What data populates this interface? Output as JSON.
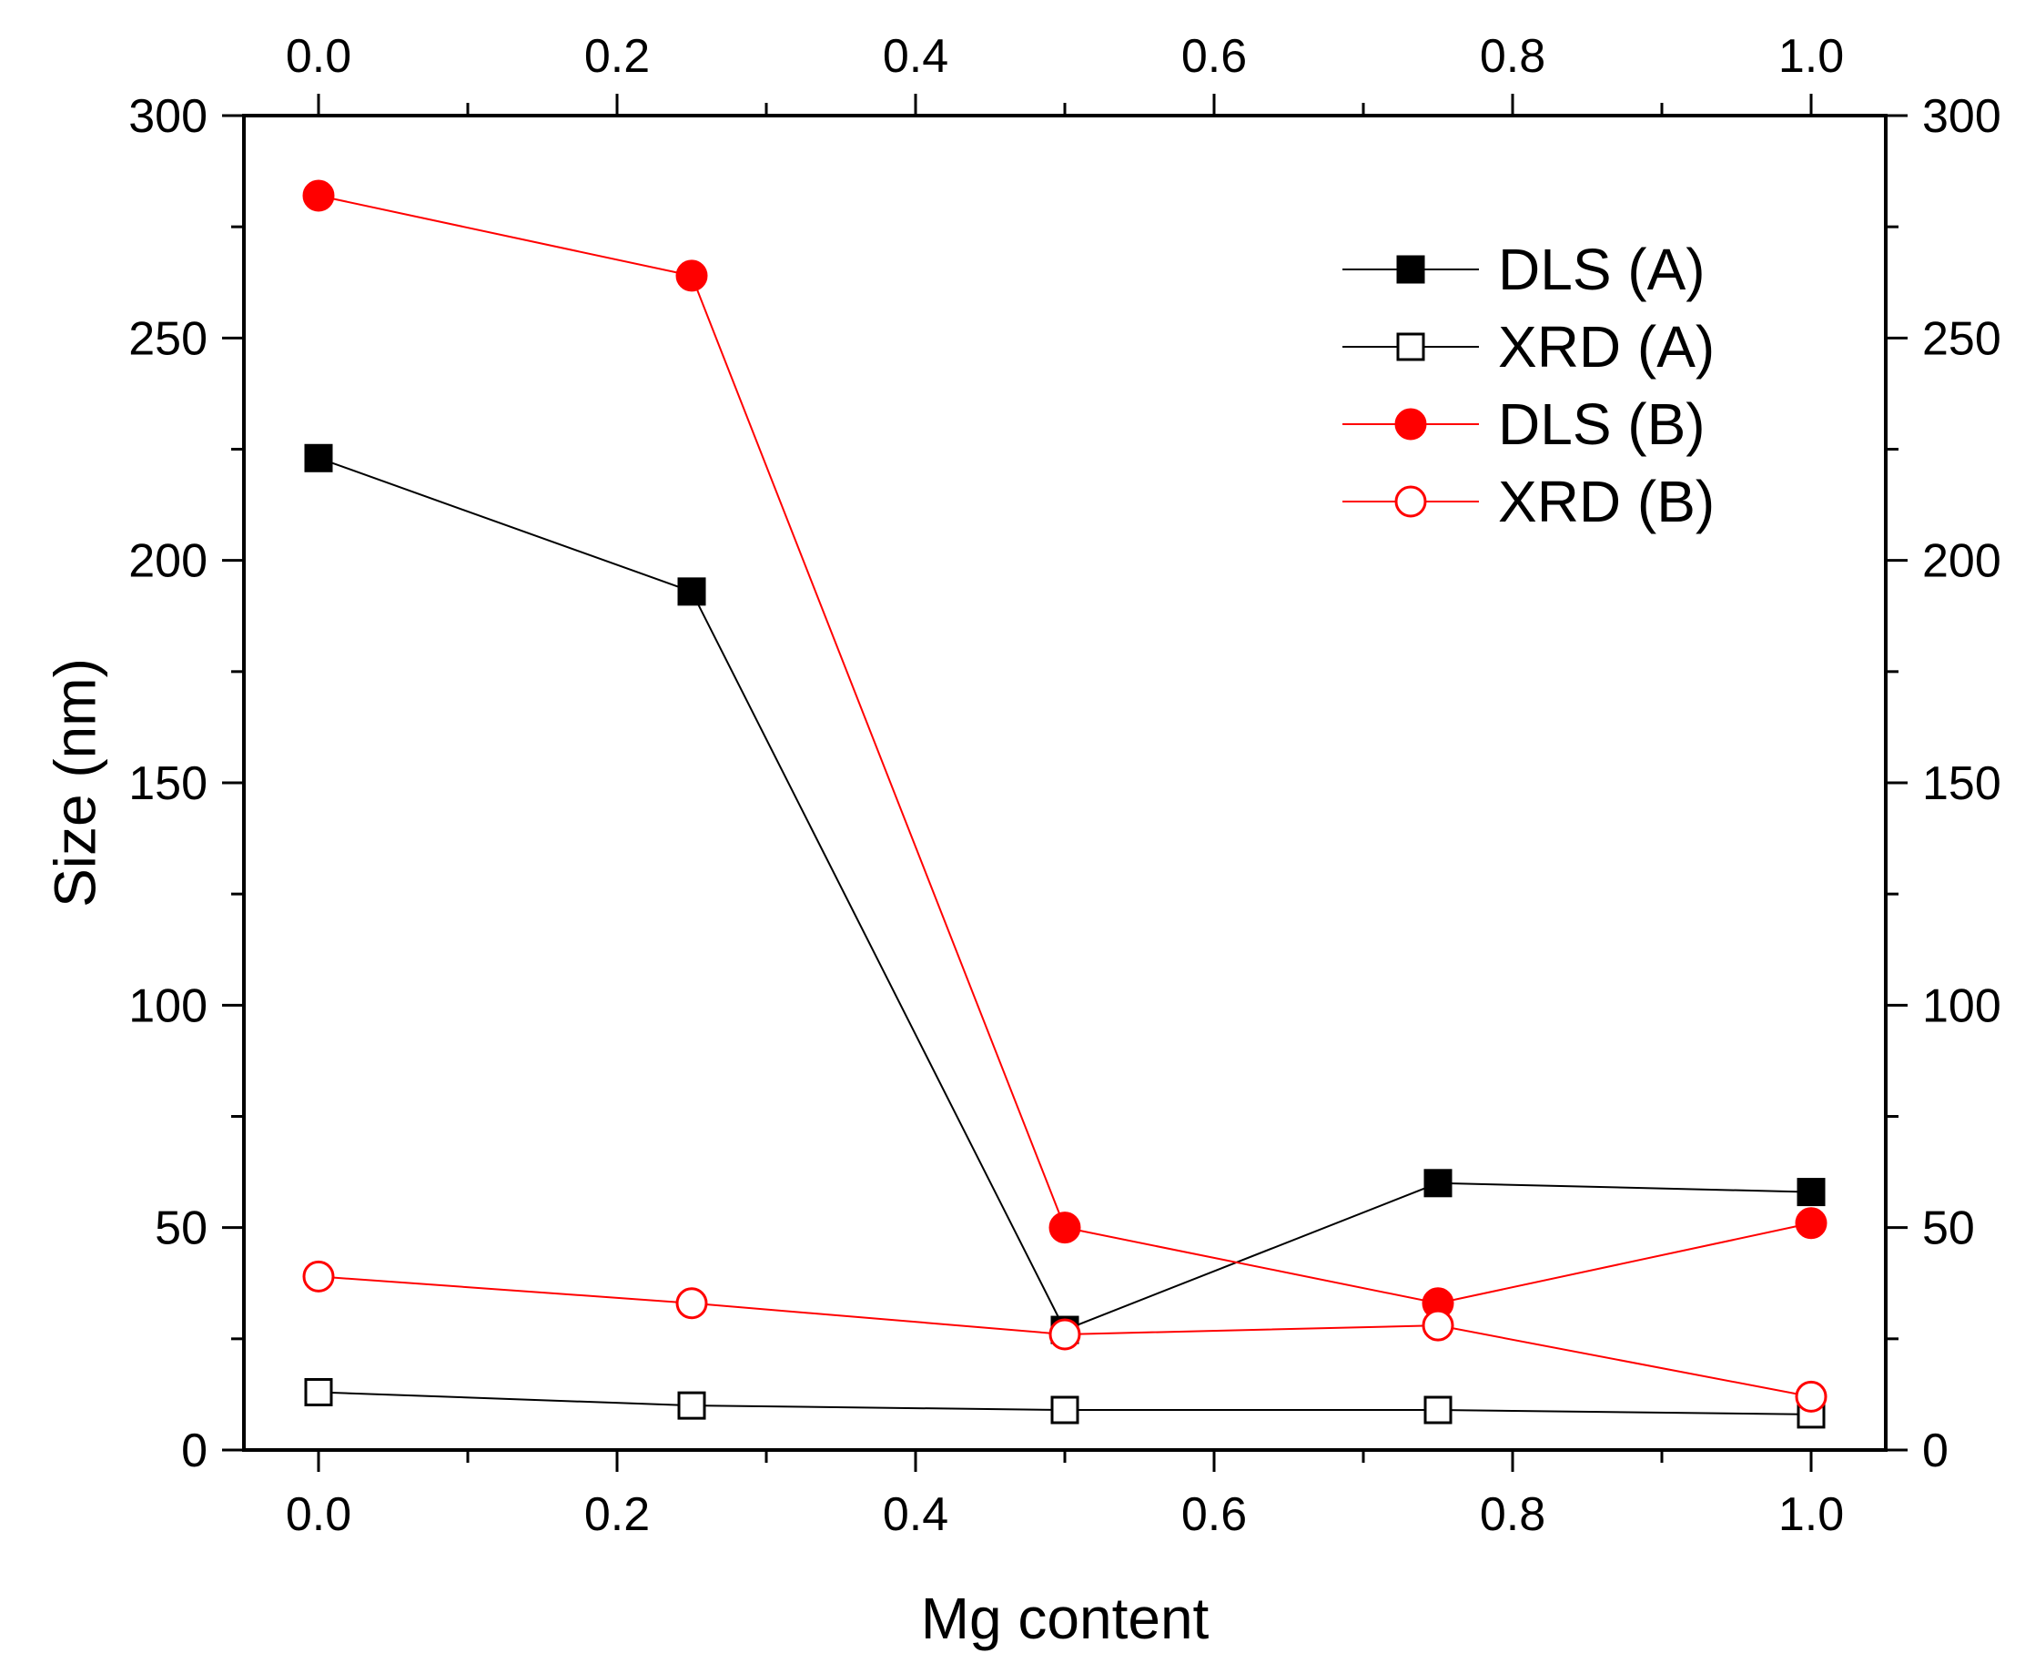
{
  "chart_data": {
    "type": "line",
    "title": "",
    "xlabel": "Mg content",
    "ylabel": "Size (nm)",
    "xlim": [
      -0.05,
      1.05
    ],
    "ylim": [
      0,
      300
    ],
    "x": [
      0.0,
      0.25,
      0.5,
      0.75,
      1.0
    ],
    "x_ticks": [
      0.0,
      0.2,
      0.4,
      0.6,
      0.8,
      1.0
    ],
    "x_tick_labels": [
      "0.0",
      "0.2",
      "0.4",
      "0.6",
      "0.8",
      "1.0"
    ],
    "y_ticks": [
      0,
      50,
      100,
      150,
      200,
      250,
      300
    ],
    "y_tick_labels": [
      "0",
      "50",
      "100",
      "150",
      "200",
      "250",
      "300"
    ],
    "legend_position": "top-right",
    "grid": false,
    "series": [
      {
        "name": "DLS (A)",
        "color": "#000000",
        "marker": "square",
        "filled": true,
        "values": [
          223,
          193,
          27,
          60,
          58
        ]
      },
      {
        "name": "XRD (A)",
        "color": "#000000",
        "marker": "square",
        "filled": false,
        "values": [
          13,
          10,
          9,
          9,
          8
        ]
      },
      {
        "name": "DLS (B)",
        "color": "#ff0000",
        "marker": "circle",
        "filled": true,
        "values": [
          282,
          264,
          50,
          33,
          51
        ]
      },
      {
        "name": "XRD (B)",
        "color": "#ff0000",
        "marker": "circle",
        "filled": false,
        "values": [
          39,
          33,
          26,
          28,
          12
        ]
      }
    ]
  }
}
